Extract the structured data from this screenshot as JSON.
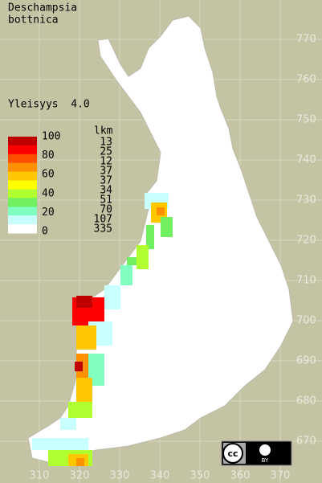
{
  "title": [
    "Deschampsia",
    "bottnica"
  ],
  "frequency": "Yleisyys  4.0",
  "legend": {
    "scale": [
      100,
      80,
      60,
      40,
      20,
      0
    ],
    "header": "lkm",
    "counts": [
      13,
      25,
      12,
      37,
      37,
      34,
      51,
      70,
      107,
      335
    ],
    "colors": [
      "#c00000",
      "#ff0000",
      "#ff5000",
      "#ff9000",
      "#ffc800",
      "#ffff00",
      "#b0ff30",
      "#70f060",
      "#80ffc0",
      "#c8ffff",
      "#ffffff"
    ]
  },
  "y_axis": [
    770,
    760,
    750,
    740,
    730,
    720,
    710,
    700,
    690,
    680,
    670
  ],
  "x_axis": [
    310,
    320,
    330,
    340,
    350,
    360,
    370
  ],
  "badge": {
    "cc": "cc",
    "by": "BY"
  }
}
